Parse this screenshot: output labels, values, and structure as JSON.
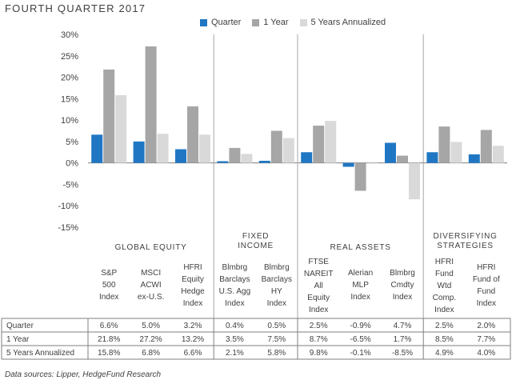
{
  "title": "FOURTH QUARTER 2017",
  "source": "Data sources: Lipper, HedgeFund Research",
  "colors": {
    "quarter": "#1f77c4",
    "one_year": "#a6a6a6",
    "five_years": "#d9d9d9"
  },
  "chart_data": {
    "type": "bar",
    "ylim": [
      -15,
      30
    ],
    "yticks": [
      "30%",
      "25%",
      "20%",
      "15%",
      "10%",
      "5%",
      "0%",
      "-5%",
      "-10%",
      "-15%"
    ],
    "groups": [
      {
        "label": "GLOBAL EQUITY",
        "count": 3
      },
      {
        "label": "FIXED INCOME",
        "count": 2
      },
      {
        "label": "REAL ASSETS",
        "count": 3
      },
      {
        "label": "DIVERSIFYING STRATEGIES",
        "count": 2
      }
    ],
    "categories": [
      [
        "S&P",
        "500",
        "Index"
      ],
      [
        "MSCI",
        "ACWI",
        "ex-U.S."
      ],
      [
        "HFRI",
        "Equity",
        "Hedge",
        "Index"
      ],
      [
        "Blmbrg",
        "Barclays",
        "U.S. Agg",
        "Index"
      ],
      [
        "Blmbrg",
        "Barclays",
        "HY",
        "Index"
      ],
      [
        "FTSE",
        "NAREIT",
        "All",
        "Equity",
        "Index"
      ],
      [
        "Alerian",
        "MLP",
        "Index"
      ],
      [
        "Blmbrg",
        "Cmdty",
        "Index"
      ],
      [
        "HFRI",
        "Fund",
        "Wtd",
        "Comp.",
        "Index"
      ],
      [
        "HFRI",
        "Fund of",
        "Fund",
        "Index"
      ]
    ],
    "series": [
      {
        "name": "Quarter",
        "values": [
          6.6,
          5.0,
          3.2,
          0.4,
          0.5,
          2.5,
          -0.9,
          4.7,
          2.5,
          2.0
        ]
      },
      {
        "name": "1 Year",
        "values": [
          21.8,
          27.2,
          13.2,
          3.5,
          7.5,
          8.7,
          -6.5,
          1.7,
          8.5,
          7.7
        ]
      },
      {
        "name": "5 Years Annualized",
        "values": [
          15.8,
          6.8,
          6.6,
          2.1,
          5.8,
          9.8,
          -0.1,
          -8.5,
          4.9,
          4.0
        ]
      }
    ],
    "table": [
      {
        "label": "Quarter",
        "cells": [
          "6.6%",
          "5.0%",
          "3.2%",
          "0.4%",
          "0.5%",
          "2.5%",
          "-0.9%",
          "4.7%",
          "2.5%",
          "2.0%"
        ]
      },
      {
        "label": "1 Year",
        "cells": [
          "21.8%",
          "27.2%",
          "13.2%",
          "3.5%",
          "7.5%",
          "8.7%",
          "-6.5%",
          "1.7%",
          "8.5%",
          "7.7%"
        ]
      },
      {
        "label": "5 Years Annualized",
        "cells": [
          "15.8%",
          "6.8%",
          "6.6%",
          "2.1%",
          "5.8%",
          "9.8%",
          "-0.1%",
          "-8.5%",
          "4.9%",
          "4.0%"
        ]
      }
    ]
  }
}
